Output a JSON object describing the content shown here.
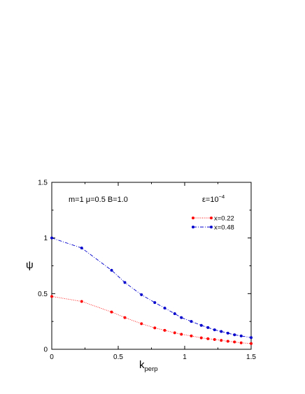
{
  "chart_data": {
    "type": "line",
    "title": "",
    "xlabel": "k",
    "xlabel_sub": "perp",
    "ylabel": "ψ",
    "xlim": [
      0,
      1.5
    ],
    "ylim": [
      0,
      1.5
    ],
    "xticks": [
      0,
      0.5,
      1,
      1.5
    ],
    "xtick_labels": [
      "0",
      "0.5",
      "1",
      "1.5"
    ],
    "yticks": [
      0,
      0.5,
      1,
      1.5
    ],
    "ytick_labels": [
      "0",
      "0.5",
      "1",
      "1.5"
    ],
    "grid": false,
    "legend_position": "top-right",
    "annotations": [
      {
        "text": "m=1 μ=0.5 B=1.0",
        "position": "top-left"
      },
      {
        "text": "ε=10",
        "superscript": "−4",
        "position": "top-right"
      }
    ],
    "series": [
      {
        "name": "x=0.22",
        "color": "#ff0000",
        "line_style": "dotted",
        "x": [
          0,
          0.225,
          0.45,
          0.55,
          0.675,
          0.775,
          0.85,
          0.925,
          0.975,
          1.05,
          1.125,
          1.175,
          1.225,
          1.275,
          1.325,
          1.375,
          1.425,
          1.5
        ],
        "y": [
          0.475,
          0.43,
          0.335,
          0.285,
          0.23,
          0.192,
          0.17,
          0.148,
          0.135,
          0.12,
          0.103,
          0.095,
          0.088,
          0.08,
          0.072,
          0.066,
          0.058,
          0.052
        ]
      },
      {
        "name": "x=0.48",
        "color": "#0000cc",
        "line_style": "dash-dot",
        "x": [
          0,
          0.225,
          0.45,
          0.55,
          0.675,
          0.775,
          0.85,
          0.925,
          0.975,
          1.05,
          1.125,
          1.175,
          1.225,
          1.275,
          1.325,
          1.375,
          1.425,
          1.5
        ],
        "y": [
          1.0,
          0.91,
          0.71,
          0.6,
          0.49,
          0.42,
          0.37,
          0.32,
          0.285,
          0.25,
          0.215,
          0.195,
          0.175,
          0.16,
          0.145,
          0.13,
          0.12,
          0.105
        ]
      }
    ]
  }
}
